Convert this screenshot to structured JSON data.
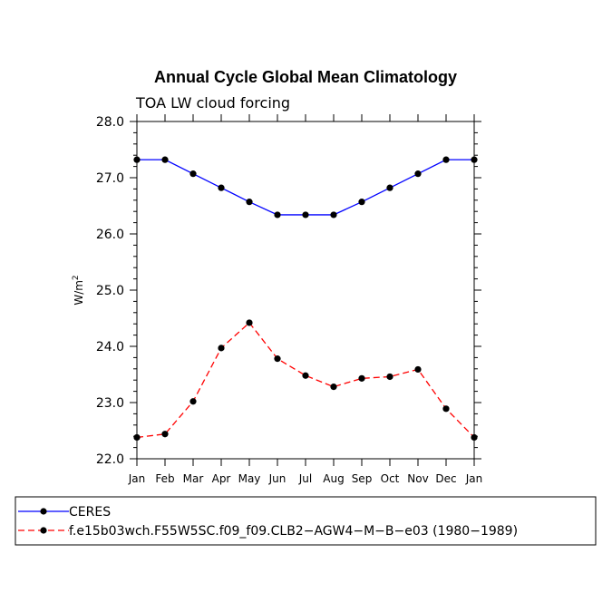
{
  "chart_data": {
    "type": "line",
    "title": "Annual Cycle Global Mean Climatology",
    "subtitle": "TOA LW cloud forcing",
    "ylabel": "W/m",
    "ylabel_sup": "2",
    "ylim": [
      22.0,
      28.0
    ],
    "yticks": [
      "22.0",
      "23.0",
      "24.0",
      "25.0",
      "26.0",
      "27.0",
      "28.0"
    ],
    "ytick_values": [
      22,
      23,
      24,
      25,
      26,
      27,
      28
    ],
    "categories": [
      "Jan",
      "Feb",
      "Mar",
      "Apr",
      "May",
      "Jun",
      "Jul",
      "Aug",
      "Sep",
      "Oct",
      "Nov",
      "Dec",
      "Jan"
    ],
    "series": [
      {
        "name": "CERES",
        "color": "#0000ff",
        "dash": "solid",
        "values": [
          27.32,
          27.32,
          27.07,
          26.82,
          26.57,
          26.34,
          26.34,
          26.34,
          26.57,
          26.82,
          27.07,
          27.32,
          27.32
        ]
      },
      {
        "name": "f.e15b03wch.F55W5SC.f09_f09.CLB2−AGW4−M−B−e03 (1980−1989)",
        "color": "#ff0000",
        "dash": "dashed",
        "values": [
          22.38,
          22.44,
          23.02,
          23.97,
          24.42,
          23.78,
          23.48,
          23.28,
          23.43,
          23.46,
          23.59,
          22.89,
          22.38
        ]
      }
    ]
  }
}
